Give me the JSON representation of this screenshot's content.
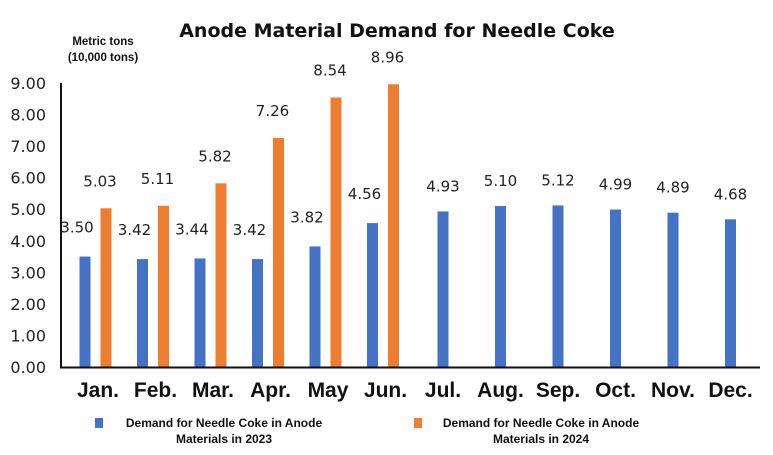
{
  "chart_data": {
    "type": "bar",
    "title": "Anode Material Demand for Needle Coke",
    "ylabel": "Metric tons (10,000 tons)",
    "ylabel_lines": [
      "Metric tons",
      "(10,000 tons)"
    ],
    "xlabel": "",
    "ylim": [
      0,
      9
    ],
    "yticks": [
      "0.00",
      "1.00",
      "2.00",
      "3.00",
      "4.00",
      "5.00",
      "6.00",
      "7.00",
      "8.00",
      "9.00"
    ],
    "grid": false,
    "legend_position": "bottom",
    "categories": [
      "Jan.",
      "Feb.",
      "Mar.",
      "Apr.",
      "May",
      "Jun.",
      "Jul.",
      "Aug.",
      "Sep.",
      "Oct.",
      "Nov.",
      "Dec."
    ],
    "series": [
      {
        "name": "Demand for Needle Coke in Anode Materials in 2023",
        "legend_lines": [
          "Demand for Needle Coke in Anode",
          "Materials in 2023"
        ],
        "color": "#4472C4",
        "values": [
          3.5,
          3.42,
          3.44,
          3.42,
          3.82,
          4.56,
          4.93,
          5.1,
          5.12,
          4.99,
          4.89,
          4.68
        ],
        "labels": [
          "3.50",
          "3.42",
          "3.44",
          "3.42",
          "3.82",
          "4.56",
          "4.93",
          "5.10",
          "5.12",
          "4.99",
          "4.89",
          "4.68"
        ]
      },
      {
        "name": "Demand for Needle Coke in Anode Materials in 2024",
        "legend_lines": [
          "Demand for Needle Coke in Anode",
          "Materials in 2024"
        ],
        "color": "#ED7D31",
        "values": [
          5.03,
          5.11,
          5.82,
          7.26,
          8.54,
          8.96,
          null,
          null,
          null,
          null,
          null,
          null
        ],
        "labels": [
          "5.03",
          "5.11",
          "5.82",
          "7.26",
          "8.54",
          "8.96",
          null,
          null,
          null,
          null,
          null,
          null
        ]
      }
    ]
  }
}
